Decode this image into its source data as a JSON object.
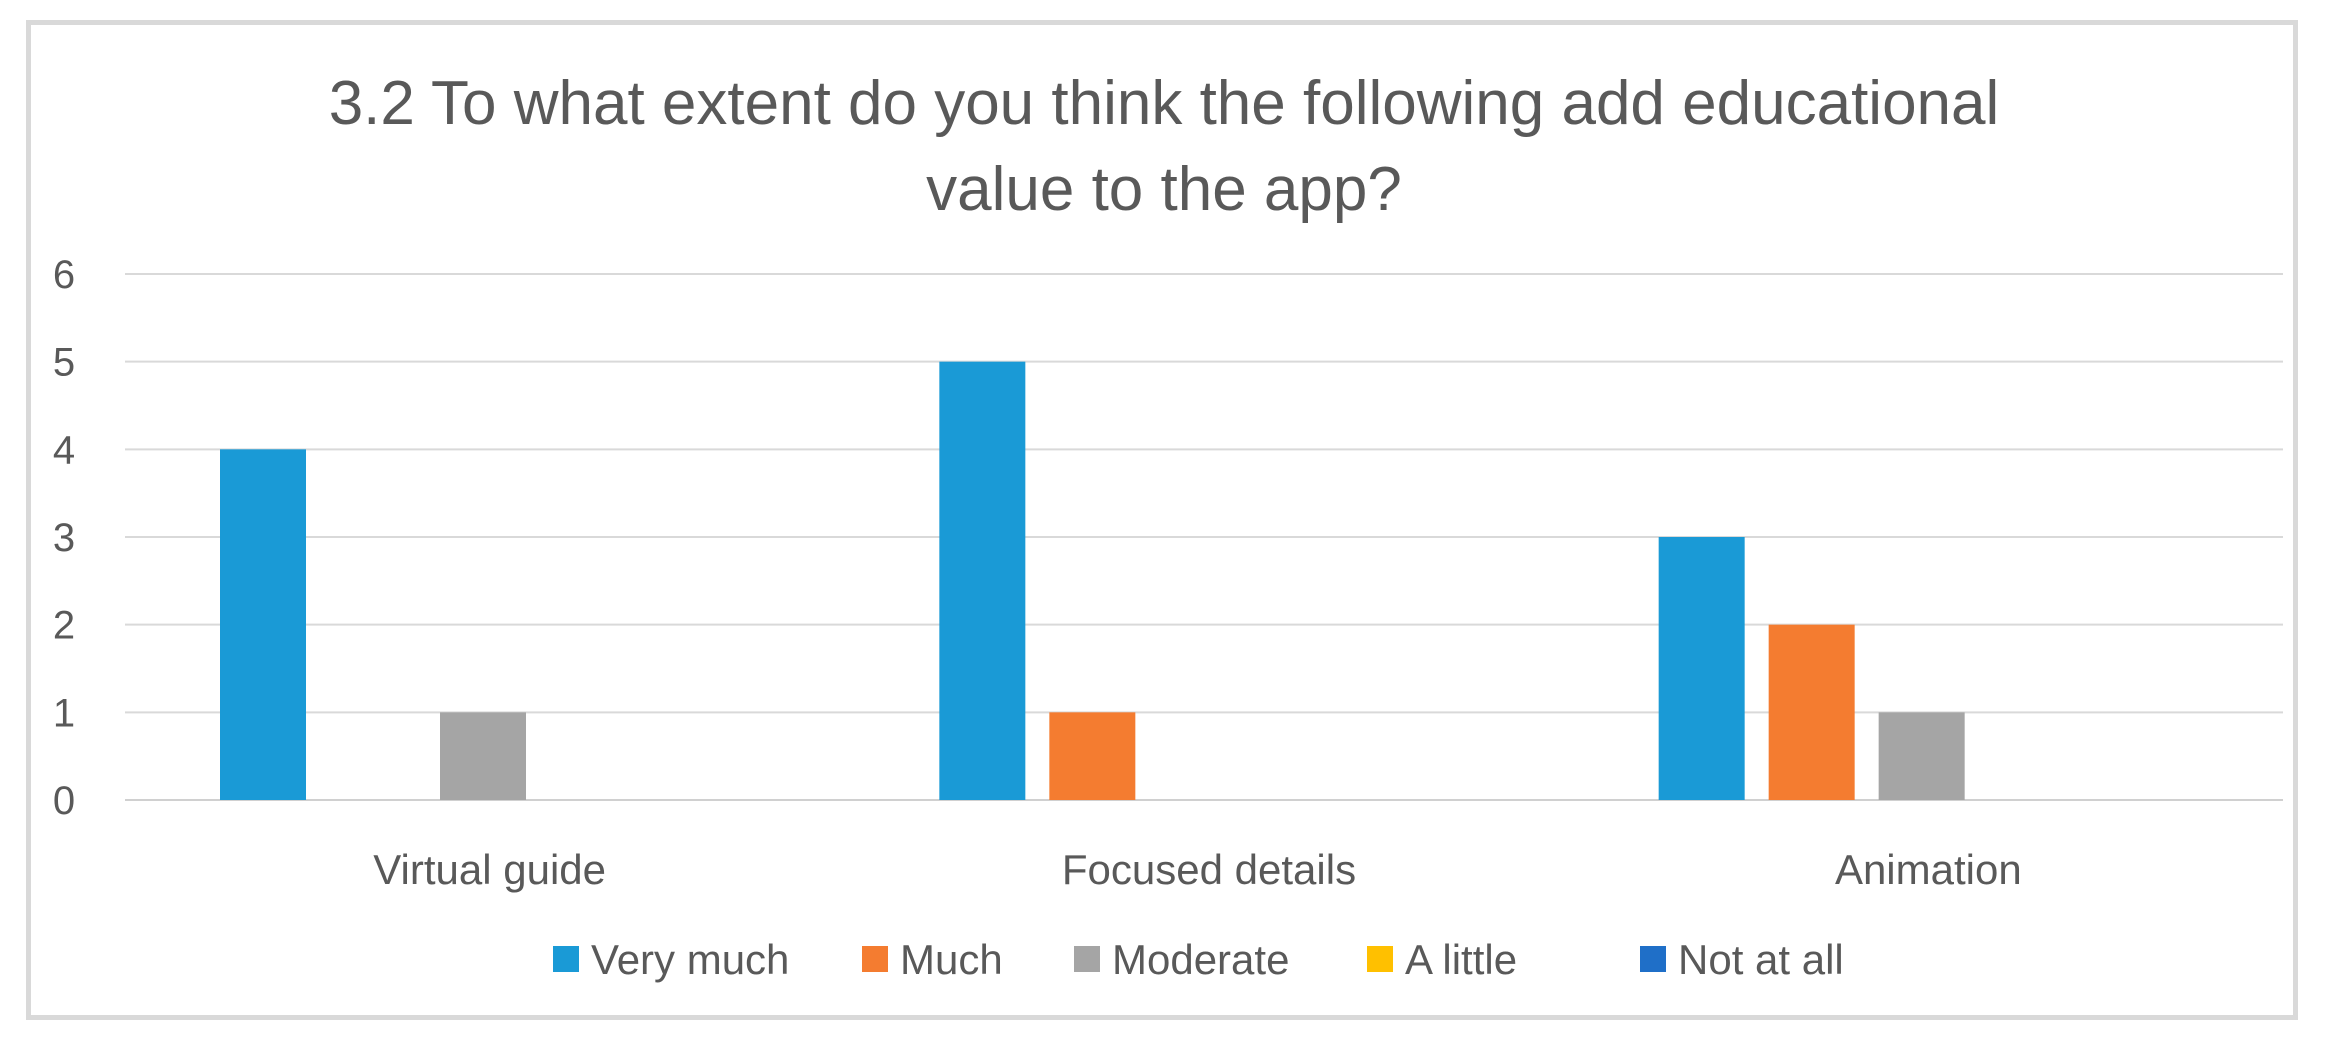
{
  "chart_data": {
    "type": "bar",
    "title": "3.2 To what extent do you think the following add educational value to the app?",
    "title_lines": [
      "3.2 To what extent do you think the following add educational",
      "value to the app?"
    ],
    "categories": [
      "Virtual guide",
      "Focused details",
      "Animation"
    ],
    "series": [
      {
        "name": "Very much",
        "color": "#1a9ad6",
        "values": [
          4,
          5,
          3
        ]
      },
      {
        "name": "Much",
        "color": "#f47c30",
        "values": [
          0,
          1,
          2
        ]
      },
      {
        "name": "Moderate",
        "color": "#a5a5a5",
        "values": [
          1,
          0,
          1
        ]
      },
      {
        "name": "A little",
        "color": "#ffc000",
        "values": [
          0,
          0,
          0
        ]
      },
      {
        "name": "Not at all",
        "color": "#1f6fc8",
        "values": [
          0,
          0,
          0
        ]
      }
    ],
    "ylim": [
      0,
      6
    ],
    "yticks": [
      0,
      1,
      2,
      3,
      4,
      5,
      6
    ],
    "xlabel": "",
    "ylabel": "",
    "grid": true,
    "legend_position": "bottom"
  }
}
